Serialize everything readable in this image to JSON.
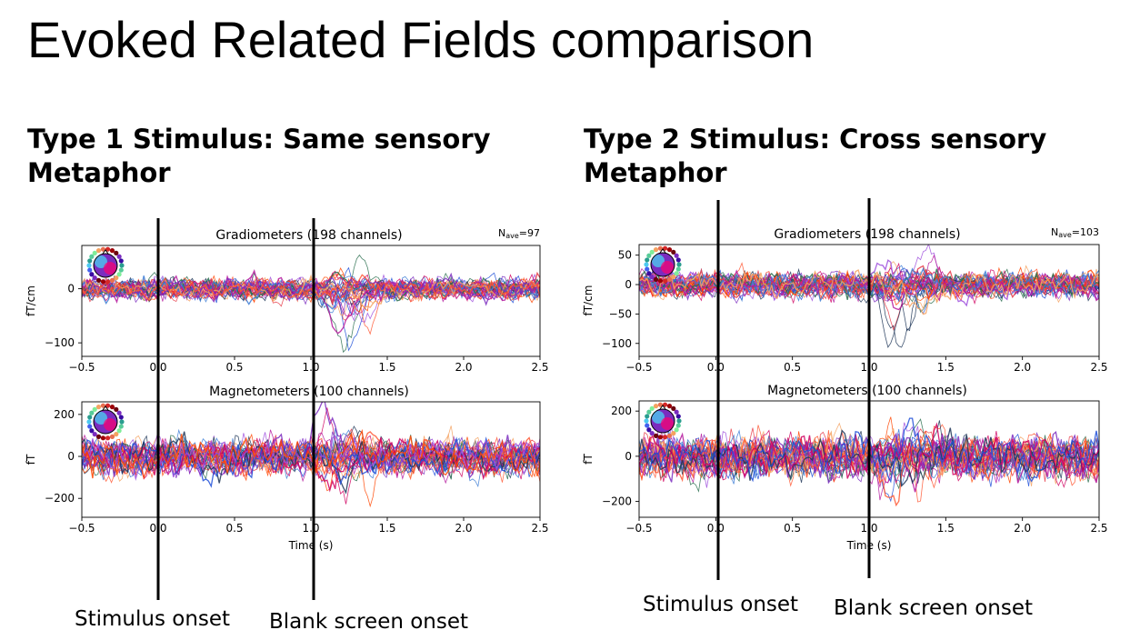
{
  "title": "Evoked Related Fields comparison",
  "panels": [
    {
      "heading": "Type 1 Stimulus: Same sensory Metaphor",
      "onset_labels": {
        "stimulus": "Stimulus onset",
        "blank": "Blank screen onset"
      }
    },
    {
      "heading": "Type 2 Stimulus: Cross sensory Metaphor",
      "onset_labels": {
        "stimulus": "Stimulus onset",
        "blank": "Blank screen onset"
      }
    }
  ],
  "chart_data": [
    {
      "type": "line",
      "title": "Gradiometers (198 channels)",
      "nave": "=97",
      "xlabel": "",
      "ylabel": "fT/cm",
      "xlim": [
        -0.5,
        2.5
      ],
      "ylim": [
        -125,
        80
      ],
      "xticks": [
        -0.5,
        0.0,
        0.5,
        1.0,
        1.5,
        2.0,
        2.5
      ],
      "xtick_labels": [
        "−0.5",
        "0.0",
        "0.5",
        "1.0",
        "1.5",
        "2.0",
        "2.5"
      ],
      "yticks": [
        0,
        -100
      ],
      "ytick_labels": [
        "0",
        "−100"
      ],
      "series_envelope": {
        "baseline_range": [
          -25,
          25
        ],
        "peak_window": [
          1.1,
          1.4
        ],
        "peak_min": -115,
        "peak_max": 75
      },
      "onset_lines_x": [
        0.0,
        1.0
      ]
    },
    {
      "type": "line",
      "title": "Magnetometers (100 channels)",
      "xlabel": "Time (s)",
      "ylabel": "fT",
      "xlim": [
        -0.5,
        2.5
      ],
      "ylim": [
        -290,
        260
      ],
      "xticks": [
        -0.5,
        0.0,
        0.5,
        1.0,
        1.5,
        2.0,
        2.5
      ],
      "xtick_labels": [
        "−0.5",
        "0.0",
        "0.5",
        "1.0",
        "1.5",
        "2.0",
        "2.5"
      ],
      "yticks": [
        200,
        0,
        -200
      ],
      "ytick_labels": [
        "200",
        "0",
        "−200"
      ],
      "series_envelope": {
        "baseline_range": [
          -110,
          110
        ],
        "peak_window": [
          1.05,
          1.4
        ],
        "peak_min": -260,
        "peak_max": 250
      },
      "onset_lines_x": [
        0.0,
        1.0
      ]
    },
    {
      "type": "line",
      "title": "Gradiometers (198 channels)",
      "nave": "=103",
      "xlabel": "",
      "ylabel": "fT/cm",
      "xlim": [
        -0.5,
        2.5
      ],
      "ylim": [
        -122,
        68
      ],
      "xticks": [
        -0.5,
        0.0,
        0.5,
        1.0,
        1.5,
        2.0,
        2.5
      ],
      "xtick_labels": [
        "−0.5",
        "0.0",
        "0.5",
        "1.0",
        "1.5",
        "2.0",
        "2.5"
      ],
      "yticks": [
        50,
        0,
        -50,
        -100
      ],
      "ytick_labels": [
        "50",
        "0",
        "−50",
        "−100"
      ],
      "series_envelope": {
        "baseline_range": [
          -25,
          30
        ],
        "peak_window": [
          1.1,
          1.4
        ],
        "peak_min": -112,
        "peak_max": 60
      },
      "onset_lines_x": [
        0.0,
        1.0
      ]
    },
    {
      "type": "line",
      "title": "Magnetometers (100 channels)",
      "xlabel": "Time (s)",
      "ylabel": "fT",
      "xlim": [
        -0.5,
        2.5
      ],
      "ylim": [
        -270,
        245
      ],
      "xticks": [
        -0.5,
        0.0,
        0.5,
        1.0,
        1.5,
        2.0,
        2.5
      ],
      "xtick_labels": [
        "−0.5",
        "0.0",
        "0.5",
        "1.0",
        "1.5",
        "2.0",
        "2.5"
      ],
      "yticks": [
        200,
        0,
        -200
      ],
      "ytick_labels": [
        "200",
        "0",
        "−200"
      ],
      "series_envelope": {
        "baseline_range": [
          -120,
          120
        ],
        "peak_window": [
          1.05,
          1.45
        ],
        "peak_min": -230,
        "peak_max": 220
      },
      "onset_lines_x": [
        0.0,
        1.0
      ]
    }
  ],
  "colors": {
    "trace_palette": [
      "#1f4fd8",
      "#3a7bd5",
      "#1d3557",
      "#2a6f4f",
      "#7b2cbf",
      "#9d4edd",
      "#b5179e",
      "#d00060",
      "#e63946",
      "#ff5733",
      "#ff4500",
      "#f4a261"
    ],
    "onset_line": "#000000"
  }
}
